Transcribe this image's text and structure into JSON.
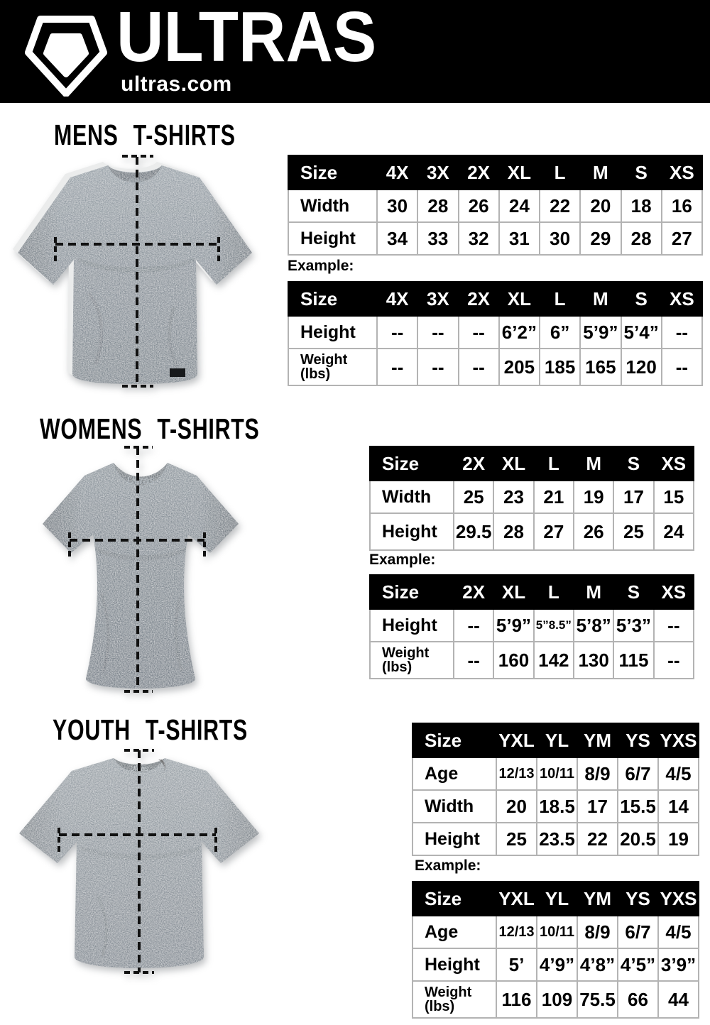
{
  "header": {
    "brand": "ULTRAS",
    "domain": "ultras.com",
    "logo_icon": "pentagon-shield-icon"
  },
  "colors": {
    "header_bg": "#000000",
    "table_header_bg": "#000000",
    "table_header_text": "#ffffff",
    "table_border": "#b3b3b3",
    "shirt_gray": "#8a939b"
  },
  "sections": [
    {
      "id": "mens",
      "title": "MENS T-SHIRTS",
      "example_label": "Example:",
      "size_table": {
        "header": [
          "Size",
          "4X",
          "3X",
          "2X",
          "XL",
          "L",
          "M",
          "S",
          "XS"
        ],
        "rows": [
          {
            "label": "Width",
            "values": [
              "30",
              "28",
              "26",
              "24",
              "22",
              "20",
              "18",
              "16"
            ]
          },
          {
            "label": "Height",
            "values": [
              "34",
              "33",
              "32",
              "31",
              "30",
              "29",
              "28",
              "27"
            ]
          }
        ]
      },
      "example_table": {
        "header": [
          "Size",
          "4X",
          "3X",
          "2X",
          "XL",
          "L",
          "M",
          "S",
          "XS"
        ],
        "rows": [
          {
            "label": "Height",
            "values": [
              "--",
              "--",
              "--",
              "6’2”",
              "6”",
              "5’9”",
              "5’4”",
              "--"
            ]
          },
          {
            "label": "Weight",
            "sublabel": "(lbs)",
            "values": [
              "--",
              "--",
              "--",
              "205",
              "185",
              "165",
              "120",
              "--"
            ]
          }
        ]
      }
    },
    {
      "id": "womens",
      "title": "WOMENS T-SHIRTS",
      "example_label": "Example:",
      "size_table": {
        "header": [
          "Size",
          "2X",
          "XL",
          "L",
          "M",
          "S",
          "XS"
        ],
        "rows": [
          {
            "label": "Width",
            "values": [
              "25",
              "23",
              "21",
              "19",
              "17",
              "15"
            ]
          },
          {
            "label": "Height",
            "values": [
              "29.5",
              "28",
              "27",
              "26",
              "25",
              "24"
            ]
          }
        ]
      },
      "example_table": {
        "header": [
          "Size",
          "2X",
          "XL",
          "L",
          "M",
          "S",
          "XS"
        ],
        "rows": [
          {
            "label": "Height",
            "values": [
              "--",
              "5’9”",
              "5”8.5”",
              "5’8”",
              "5’3”",
              "--"
            ]
          },
          {
            "label": "Weight",
            "sublabel": "(lbs)",
            "values": [
              "--",
              "160",
              "142",
              "130",
              "115",
              "--"
            ]
          }
        ]
      }
    },
    {
      "id": "youth",
      "title": "YOUTH T-SHIRTS",
      "example_label": "Example:",
      "size_table": {
        "header": [
          "Size",
          "YXL",
          "YL",
          "YM",
          "YS",
          "YXS"
        ],
        "rows": [
          {
            "label": "Age",
            "values": [
              "12/13",
              "10/11",
              "8/9",
              "6/7",
              "4/5"
            ]
          },
          {
            "label": "Width",
            "values": [
              "20",
              "18.5",
              "17",
              "15.5",
              "14"
            ]
          },
          {
            "label": "Height",
            "values": [
              "25",
              "23.5",
              "22",
              "20.5",
              "19"
            ]
          }
        ]
      },
      "example_table": {
        "header": [
          "Size",
          "YXL",
          "YL",
          "YM",
          "YS",
          "YXS"
        ],
        "rows": [
          {
            "label": "Age",
            "values": [
              "12/13",
              "10/11",
              "8/9",
              "6/7",
              "4/5"
            ]
          },
          {
            "label": "Height",
            "values": [
              "5’",
              "4’9”",
              "4’8”",
              "4’5”",
              "3’9”"
            ]
          },
          {
            "label": "Weight",
            "sublabel": "(lbs)",
            "values": [
              "116",
              "109",
              "75.5",
              "66",
              "44"
            ]
          }
        ]
      }
    }
  ]
}
